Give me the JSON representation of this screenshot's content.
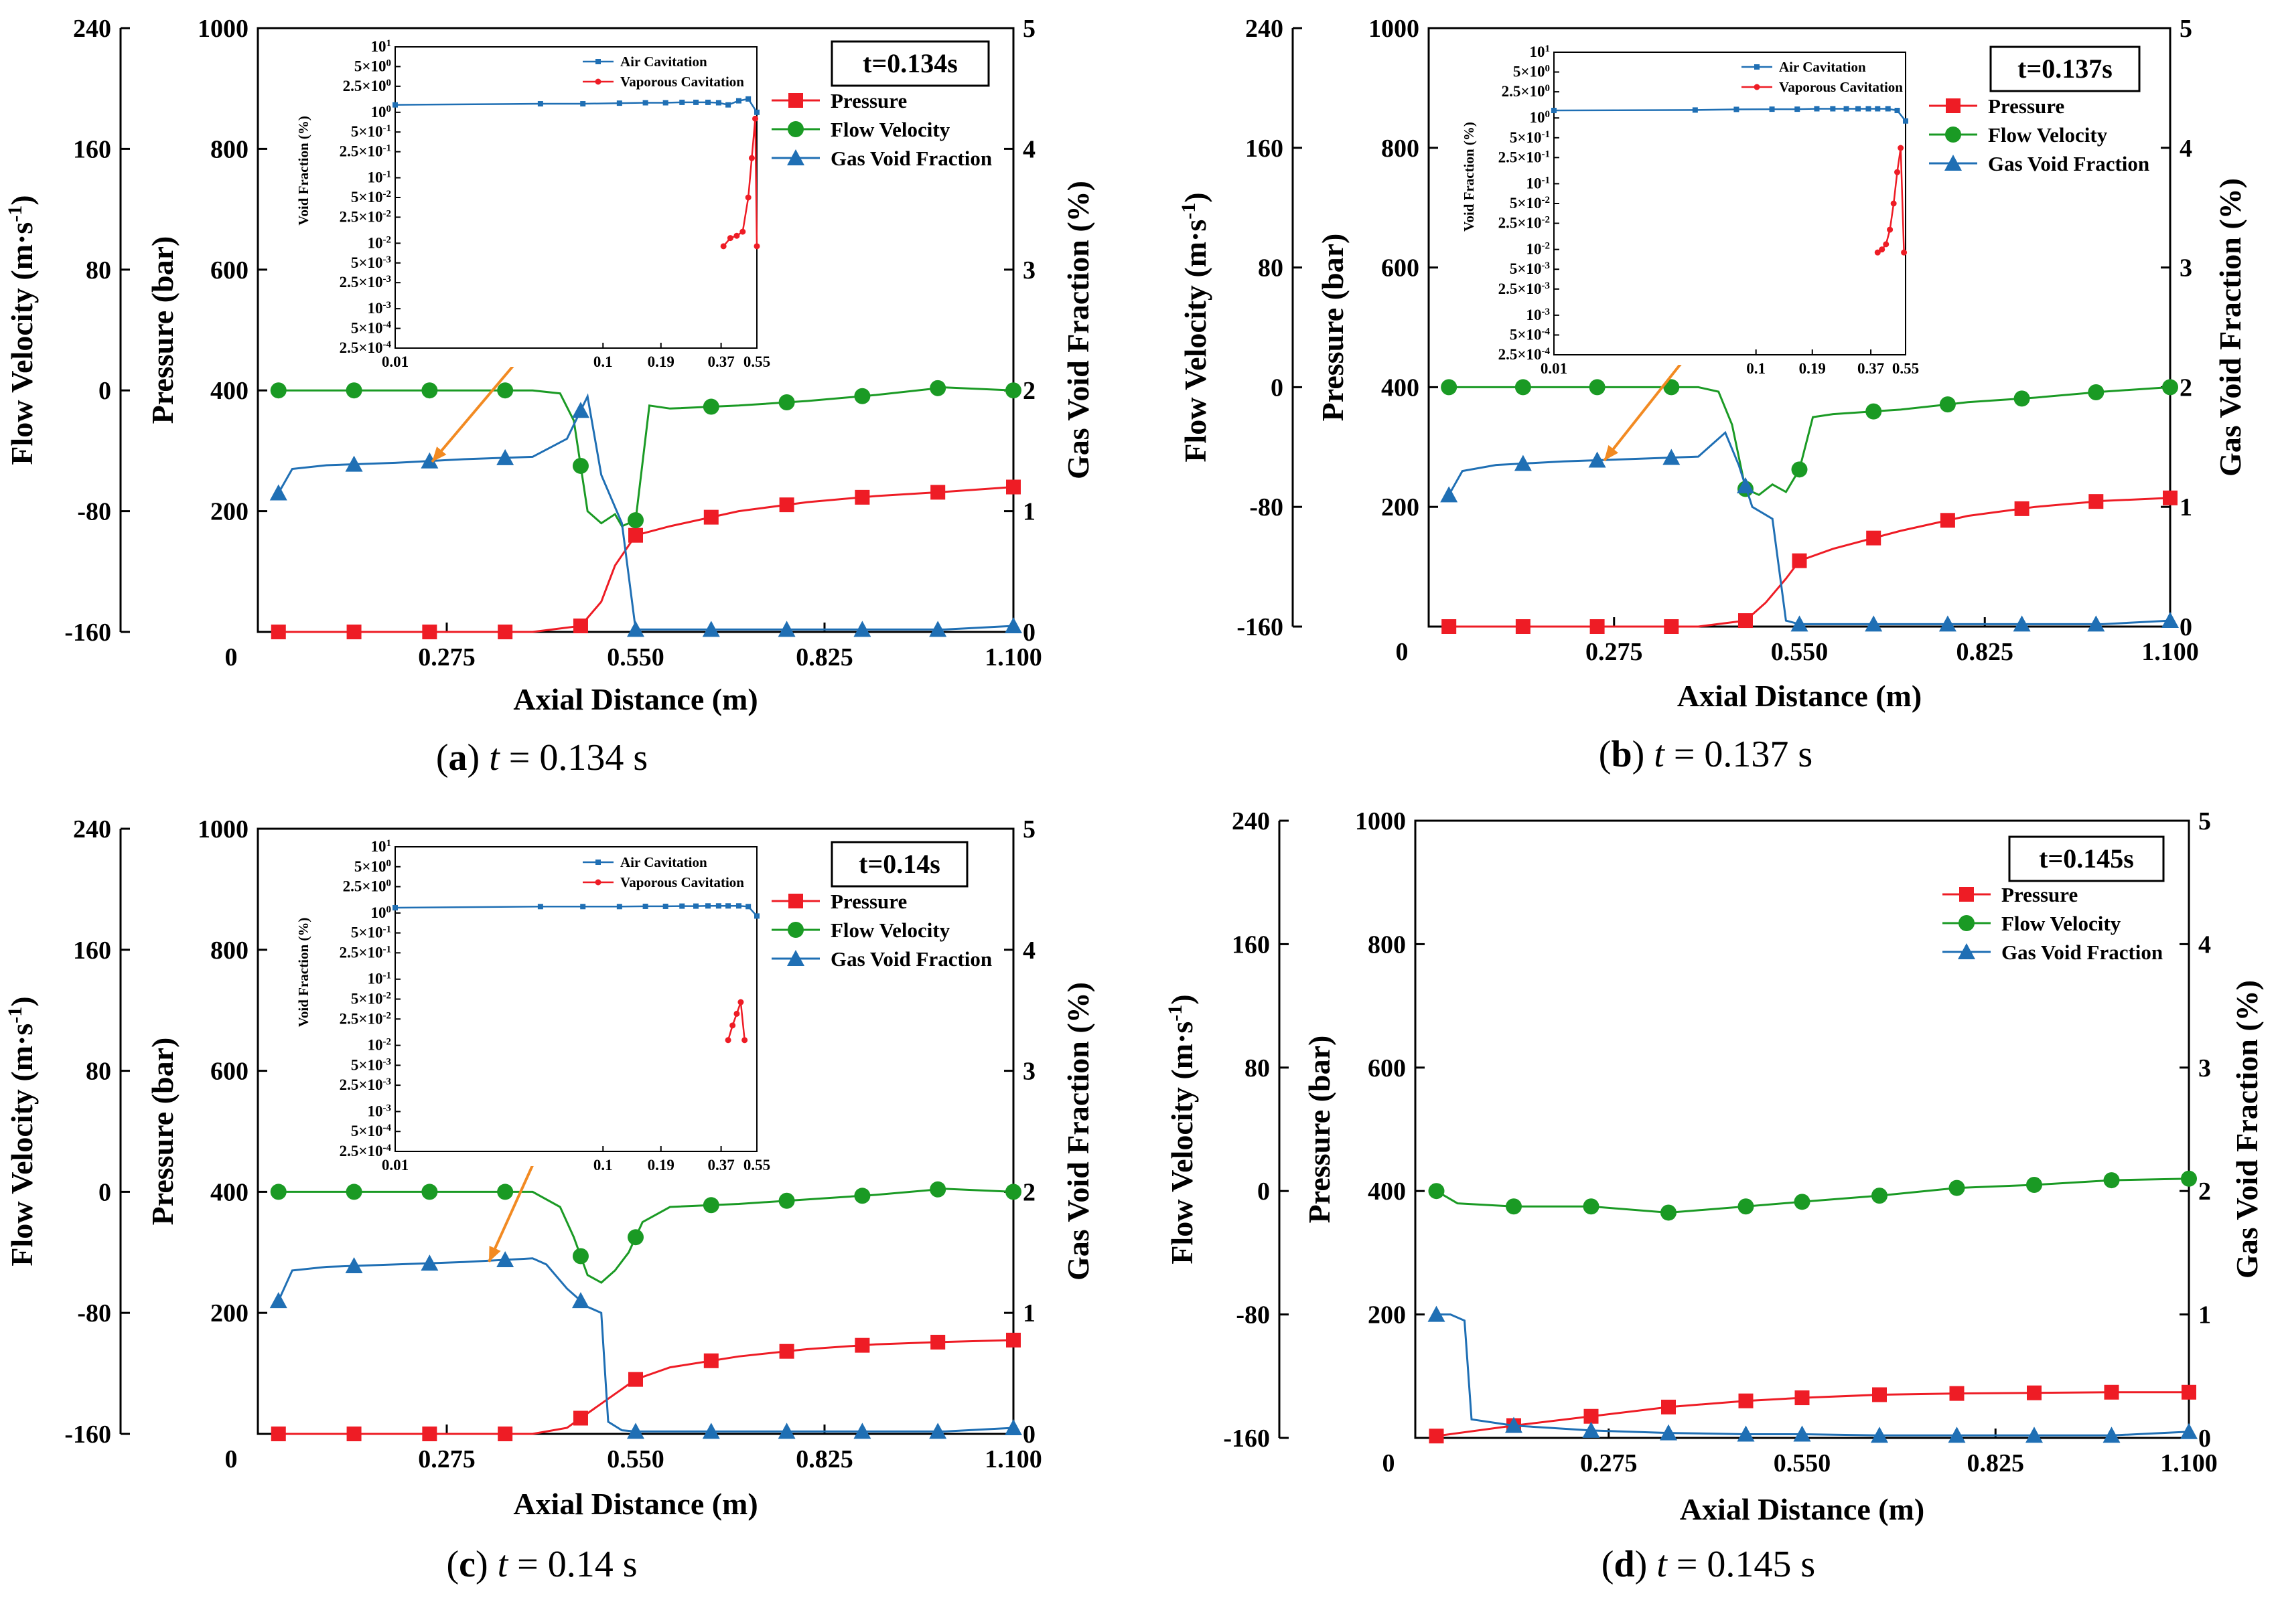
{
  "figure": {
    "panels": [
      {
        "id": "a",
        "caption": {
          "label": "(a)",
          "italic": "t",
          "rest": " = 0.134 s"
        },
        "time_label": "t=0.134s"
      },
      {
        "id": "b",
        "caption": {
          "label": "(b)",
          "italic": "t",
          "rest": " = 0.137 s"
        },
        "time_label": "t=0.137s"
      },
      {
        "id": "c",
        "caption": {
          "label": "(c)",
          "italic": "t",
          "rest": " = 0.14 s"
        },
        "time_label": "t=0.14s"
      },
      {
        "id": "d",
        "caption": {
          "label": "(d)",
          "italic": "t",
          "rest": " = 0.145 s"
        },
        "time_label": "t=0.145s"
      }
    ],
    "axes": {
      "x_label": "Axial Distance (m)",
      "y_left_outer_label": "Flow Velocity (m·s",
      "y_left_outer_sup": "-1",
      "y_left_outer_close": ")",
      "y_left_inner_label": "Pressure (bar)",
      "y_right_label": "Gas Void Fraction (%)",
      "x_ticks": [
        "0",
        "0.275",
        "0.550",
        "0.825",
        "1.100"
      ],
      "velocity_ticks": [
        "-160",
        "-80",
        "0",
        "80",
        "160",
        "240"
      ],
      "pressure_ticks": [
        "200",
        "400",
        "600",
        "800",
        "1000"
      ],
      "void_ticks": [
        "0",
        "1",
        "2",
        "3",
        "4",
        "5"
      ]
    },
    "legend": [
      "Pressure",
      "Flow Velocity",
      "Gas Void Fraction"
    ],
    "inset": {
      "legend": [
        "Air Cavitation",
        "Vaporous Cavitation"
      ],
      "y_label": "Void Fraction (%)",
      "x_ticks": [
        "0.01",
        "0.1",
        "0.19",
        "0.37",
        "0.55"
      ],
      "y_ticks": [
        "10^1",
        "5×10^0",
        "2.5×10^0",
        "10^0",
        "5×10^-1",
        "2.5×10^-1",
        "10^-1",
        "5×10^-2",
        "2.5×10^-2",
        "10^-2",
        "5×10^-3",
        "2.5×10^-3",
        "10^-3",
        "5×10^-4",
        "2.5×10^-4"
      ]
    },
    "colors": {
      "pressure": "#ee1c25",
      "velocity": "#1a9a24",
      "void": "#1f6fb4",
      "arrow": "#f28a22"
    }
  },
  "chart_data": [
    {
      "panel": "a",
      "type": "line",
      "title": "t=0.134s",
      "xlabel": "Axial Distance (m)",
      "xlim": [
        0,
        1.1
      ],
      "y_axes": [
        {
          "name": "Flow Velocity (m·s-1)",
          "lim": [
            -160,
            240
          ]
        },
        {
          "name": "Pressure (bar)",
          "lim": [
            0,
            1000
          ]
        },
        {
          "name": "Gas Void Fraction (%)",
          "lim": [
            0,
            5
          ]
        }
      ],
      "series": [
        {
          "name": "Pressure",
          "axis": "pressure",
          "marker": "square",
          "x": [
            0.03,
            0.1,
            0.2,
            0.3,
            0.4,
            0.47,
            0.5,
            0.52,
            0.55,
            0.6,
            0.7,
            0.8,
            0.9,
            1.0,
            1.1
          ],
          "y": [
            0,
            0,
            0,
            0,
            0,
            10,
            50,
            110,
            160,
            175,
            200,
            215,
            225,
            232,
            240
          ],
          "markers_x": [
            0.03,
            0.14,
            0.25,
            0.36,
            0.47,
            0.55,
            0.66,
            0.77,
            0.88,
            0.99,
            1.1
          ]
        },
        {
          "name": "Flow Velocity",
          "axis": "velocity",
          "marker": "circle",
          "x": [
            0.03,
            0.1,
            0.2,
            0.3,
            0.4,
            0.44,
            0.46,
            0.48,
            0.5,
            0.52,
            0.53,
            0.55,
            0.57,
            0.6,
            0.7,
            0.8,
            0.9,
            1.0,
            1.1
          ],
          "y": [
            0,
            0,
            0,
            0,
            0,
            -2,
            -20,
            -80,
            -88,
            -82,
            -90,
            -86,
            -10,
            -12,
            -10,
            -7,
            -3,
            2,
            0
          ],
          "markers_x": [
            0.03,
            0.14,
            0.25,
            0.36,
            0.47,
            0.55,
            0.66,
            0.77,
            0.88,
            0.99,
            1.1
          ]
        },
        {
          "name": "Gas Void Fraction",
          "axis": "void",
          "marker": "triangle",
          "x": [
            0.03,
            0.05,
            0.1,
            0.2,
            0.3,
            0.4,
            0.45,
            0.48,
            0.5,
            0.53,
            0.55,
            0.6,
            0.7,
            0.8,
            0.9,
            1.0,
            1.1
          ],
          "y": [
            1.15,
            1.35,
            1.38,
            1.4,
            1.43,
            1.45,
            1.6,
            1.95,
            1.3,
            0.9,
            0.02,
            0.02,
            0.02,
            0.02,
            0.02,
            0.02,
            0.05
          ],
          "markers_x": [
            0.03,
            0.14,
            0.25,
            0.36,
            0.47,
            0.55,
            0.66,
            0.77,
            0.88,
            0.99,
            1.1
          ]
        }
      ],
      "inset": {
        "xlim": [
          0.01,
          0.55
        ],
        "ylim": [
          0.00025,
          10
        ],
        "series": [
          {
            "name": "Air Cavitation",
            "x": [
              0.01,
              0.05,
              0.08,
              0.12,
              0.16,
              0.2,
              0.24,
              0.28,
              0.32,
              0.36,
              0.4,
              0.45,
              0.5,
              0.55
            ],
            "y": [
              1.3,
              1.35,
              1.35,
              1.38,
              1.4,
              1.4,
              1.42,
              1.42,
              1.42,
              1.4,
              1.3,
              1.5,
              1.6,
              1.0
            ]
          },
          {
            "name": "Vaporous Cavitation",
            "x": [
              0.38,
              0.41,
              0.44,
              0.47,
              0.5,
              0.52,
              0.54,
              0.55
            ],
            "y": [
              0.009,
              0.012,
              0.013,
              0.015,
              0.05,
              0.2,
              0.8,
              0.009
            ]
          }
        ]
      }
    },
    {
      "panel": "b",
      "type": "line",
      "title": "t=0.137s",
      "xlabel": "Axial Distance (m)",
      "xlim": [
        0,
        1.1
      ],
      "y_axes": [
        {
          "name": "Flow Velocity (m·s-1)",
          "lim": [
            -160,
            240
          ]
        },
        {
          "name": "Pressure (bar)",
          "lim": [
            0,
            1000
          ]
        },
        {
          "name": "Gas Void Fraction (%)",
          "lim": [
            0,
            5
          ]
        }
      ],
      "series": [
        {
          "name": "Pressure",
          "axis": "pressure",
          "marker": "square",
          "x": [
            0.03,
            0.1,
            0.2,
            0.3,
            0.4,
            0.47,
            0.5,
            0.53,
            0.55,
            0.6,
            0.7,
            0.8,
            0.9,
            1.0,
            1.1
          ],
          "y": [
            0,
            0,
            0,
            0,
            0,
            10,
            40,
            80,
            110,
            130,
            160,
            185,
            200,
            210,
            215
          ],
          "markers_x": [
            0.03,
            0.14,
            0.25,
            0.36,
            0.47,
            0.55,
            0.66,
            0.77,
            0.88,
            0.99,
            1.1
          ]
        },
        {
          "name": "Flow Velocity",
          "axis": "velocity",
          "marker": "circle",
          "x": [
            0.03,
            0.1,
            0.2,
            0.3,
            0.4,
            0.43,
            0.45,
            0.47,
            0.49,
            0.51,
            0.53,
            0.55,
            0.57,
            0.6,
            0.7,
            0.8,
            0.9,
            1.0,
            1.1
          ],
          "y": [
            0,
            0,
            0,
            0,
            0,
            -3,
            -25,
            -68,
            -72,
            -65,
            -70,
            -55,
            -20,
            -18,
            -15,
            -10,
            -7,
            -3,
            0
          ],
          "markers_x": [
            0.03,
            0.14,
            0.25,
            0.36,
            0.47,
            0.55,
            0.66,
            0.77,
            0.88,
            0.99,
            1.1
          ]
        },
        {
          "name": "Gas Void Fraction",
          "axis": "void",
          "marker": "triangle",
          "x": [
            0.03,
            0.05,
            0.1,
            0.2,
            0.3,
            0.4,
            0.44,
            0.46,
            0.48,
            0.51,
            0.53,
            0.55,
            0.6,
            0.7,
            0.8,
            0.9,
            1.0,
            1.1
          ],
          "y": [
            1.1,
            1.3,
            1.35,
            1.38,
            1.4,
            1.42,
            1.62,
            1.35,
            1.0,
            0.9,
            0.05,
            0.02,
            0.02,
            0.02,
            0.02,
            0.02,
            0.02,
            0.05
          ],
          "markers_x": [
            0.03,
            0.14,
            0.25,
            0.36,
            0.47,
            0.55,
            0.66,
            0.77,
            0.88,
            0.99,
            1.1
          ]
        }
      ],
      "inset": {
        "xlim": [
          0.01,
          0.55
        ],
        "ylim": [
          0.00025,
          10
        ],
        "series": [
          {
            "name": "Air Cavitation",
            "x": [
              0.01,
              0.05,
              0.08,
              0.12,
              0.16,
              0.2,
              0.24,
              0.28,
              0.32,
              0.36,
              0.4,
              0.45,
              0.5,
              0.55
            ],
            "y": [
              1.3,
              1.32,
              1.35,
              1.36,
              1.36,
              1.38,
              1.38,
              1.38,
              1.38,
              1.38,
              1.38,
              1.38,
              1.3,
              0.9
            ]
          },
          {
            "name": "Vaporous Cavitation",
            "x": [
              0.4,
              0.42,
              0.44,
              0.46,
              0.48,
              0.5,
              0.52,
              0.54
            ],
            "y": [
              0.009,
              0.01,
              0.012,
              0.02,
              0.05,
              0.15,
              0.35,
              0.009
            ]
          }
        ]
      }
    },
    {
      "panel": "c",
      "type": "line",
      "title": "t=0.14s",
      "xlabel": "Axial Distance (m)",
      "xlim": [
        0,
        1.1
      ],
      "y_axes": [
        {
          "name": "Flow Velocity (m·s-1)",
          "lim": [
            -160,
            240
          ]
        },
        {
          "name": "Pressure (bar)",
          "lim": [
            0,
            1000
          ]
        },
        {
          "name": "Gas Void Fraction (%)",
          "lim": [
            0,
            5
          ]
        }
      ],
      "series": [
        {
          "name": "Pressure",
          "axis": "pressure",
          "marker": "square",
          "x": [
            0.03,
            0.1,
            0.2,
            0.3,
            0.4,
            0.45,
            0.5,
            0.55,
            0.6,
            0.7,
            0.8,
            0.9,
            1.0,
            1.1
          ],
          "y": [
            0,
            0,
            0,
            0,
            0,
            10,
            50,
            90,
            110,
            128,
            140,
            148,
            152,
            155
          ],
          "markers_x": [
            0.03,
            0.14,
            0.25,
            0.36,
            0.47,
            0.55,
            0.66,
            0.77,
            0.88,
            0.99,
            1.1
          ]
        },
        {
          "name": "Flow Velocity",
          "axis": "velocity",
          "marker": "circle",
          "x": [
            0.03,
            0.1,
            0.2,
            0.3,
            0.4,
            0.44,
            0.46,
            0.48,
            0.5,
            0.52,
            0.54,
            0.56,
            0.6,
            0.7,
            0.8,
            0.9,
            1.0,
            1.1
          ],
          "y": [
            0,
            0,
            0,
            0,
            0,
            -10,
            -30,
            -55,
            -60,
            -52,
            -40,
            -20,
            -10,
            -8,
            -5,
            -2,
            2,
            0
          ],
          "markers_x": [
            0.03,
            0.14,
            0.25,
            0.36,
            0.47,
            0.55,
            0.66,
            0.77,
            0.88,
            0.99,
            1.1
          ]
        },
        {
          "name": "Gas Void Fraction",
          "axis": "void",
          "marker": "triangle",
          "x": [
            0.03,
            0.05,
            0.1,
            0.2,
            0.3,
            0.4,
            0.42,
            0.45,
            0.48,
            0.5,
            0.51,
            0.53,
            0.55,
            0.6,
            0.7,
            0.8,
            0.9,
            1.0,
            1.1
          ],
          "y": [
            1.1,
            1.35,
            1.38,
            1.4,
            1.42,
            1.45,
            1.4,
            1.2,
            1.05,
            1.0,
            0.1,
            0.03,
            0.02,
            0.02,
            0.02,
            0.02,
            0.02,
            0.02,
            0.05
          ],
          "markers_x": [
            0.03,
            0.14,
            0.25,
            0.36,
            0.47,
            0.55,
            0.66,
            0.77,
            0.88,
            0.99,
            1.1
          ]
        }
      ],
      "inset": {
        "xlim": [
          0.01,
          0.55
        ],
        "ylim": [
          0.00025,
          10
        ],
        "series": [
          {
            "name": "Air Cavitation",
            "x": [
              0.01,
              0.05,
              0.08,
              0.12,
              0.16,
              0.2,
              0.24,
              0.28,
              0.32,
              0.36,
              0.4,
              0.45,
              0.5,
              0.55
            ],
            "y": [
              1.2,
              1.25,
              1.25,
              1.25,
              1.26,
              1.26,
              1.27,
              1.27,
              1.28,
              1.28,
              1.28,
              1.28,
              1.25,
              0.9
            ]
          },
          {
            "name": "Vaporous Cavitation",
            "x": [
              0.4,
              0.42,
              0.44,
              0.46,
              0.48
            ],
            "y": [
              0.012,
              0.02,
              0.03,
              0.045,
              0.012
            ]
          }
        ]
      }
    },
    {
      "panel": "d",
      "type": "line",
      "title": "t=0.145s",
      "xlabel": "Axial Distance (m)",
      "xlim": [
        0,
        1.1
      ],
      "y_axes": [
        {
          "name": "Flow Velocity (m·s-1)",
          "lim": [
            -160,
            240
          ]
        },
        {
          "name": "Pressure (bar)",
          "lim": [
            0,
            1000
          ]
        },
        {
          "name": "Gas Void Fraction (%)",
          "lim": [
            0,
            5
          ]
        }
      ],
      "series": [
        {
          "name": "Pressure",
          "axis": "pressure",
          "marker": "square",
          "x": [
            0.03,
            0.14,
            0.25,
            0.36,
            0.47,
            0.55,
            0.66,
            0.77,
            0.88,
            0.99,
            1.1
          ],
          "y": [
            3,
            20,
            35,
            50,
            60,
            65,
            70,
            72,
            73,
            74,
            74
          ],
          "markers_x": [
            0.03,
            0.14,
            0.25,
            0.36,
            0.47,
            0.55,
            0.66,
            0.77,
            0.88,
            0.99,
            1.1
          ]
        },
        {
          "name": "Flow Velocity",
          "axis": "velocity",
          "marker": "circle",
          "x": [
            0.03,
            0.06,
            0.14,
            0.25,
            0.36,
            0.47,
            0.55,
            0.66,
            0.77,
            0.88,
            0.99,
            1.1
          ],
          "y": [
            0,
            -8,
            -10,
            -10,
            -14,
            -10,
            -7,
            -3,
            2,
            4,
            7,
            8
          ],
          "markers_x": [
            0.03,
            0.14,
            0.25,
            0.36,
            0.47,
            0.55,
            0.66,
            0.77,
            0.88,
            0.99,
            1.1
          ]
        },
        {
          "name": "Gas Void Fraction",
          "axis": "void",
          "marker": "triangle",
          "x": [
            0.03,
            0.05,
            0.07,
            0.08,
            0.14,
            0.25,
            0.36,
            0.47,
            0.55,
            0.66,
            0.77,
            0.88,
            0.99,
            1.1
          ],
          "y": [
            1.0,
            1.0,
            0.95,
            0.15,
            0.1,
            0.06,
            0.04,
            0.03,
            0.03,
            0.02,
            0.02,
            0.02,
            0.02,
            0.05
          ],
          "markers_x": [
            0.03,
            0.14,
            0.25,
            0.36,
            0.47,
            0.55,
            0.66,
            0.77,
            0.88,
            0.99,
            1.1
          ]
        }
      ]
    }
  ]
}
